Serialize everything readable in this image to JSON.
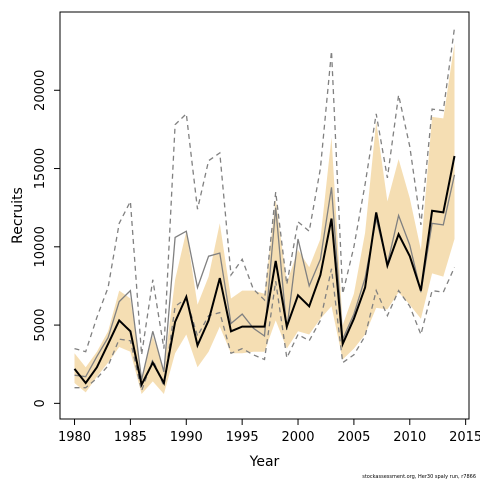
{
  "chart_data": {
    "type": "line",
    "title": "",
    "xlabel": "Year",
    "ylabel": "Recruits",
    "credit": "stockassessment.org, Her30 spaly run, r7866",
    "xlim": [
      1978.7,
      2015.3
    ],
    "ylim": [
      -1000,
      25000
    ],
    "x_ticks": [
      1980,
      1985,
      1990,
      1995,
      2000,
      2005,
      2010,
      2015
    ],
    "y_ticks": [
      0,
      5000,
      10000,
      15000,
      20000
    ],
    "grid": false,
    "legend": "none",
    "colors": {
      "band": "#f5deb3",
      "current": "#000000",
      "previous": "#808080",
      "previous_ci": "#808080"
    },
    "x": [
      1980,
      1981,
      1982,
      1983,
      1984,
      1985,
      1986,
      1987,
      1988,
      1989,
      1990,
      1991,
      1992,
      1993,
      1994,
      1995,
      1996,
      1997,
      1998,
      1999,
      2000,
      2001,
      2002,
      2003,
      2004,
      2005,
      2006,
      2007,
      2008,
      2009,
      2010,
      2011,
      2012,
      2013,
      2014
    ],
    "series": [
      {
        "role": "current_ci_band",
        "lower": [
          1300,
          700,
          1700,
          2600,
          3600,
          3300,
          600,
          1400,
          600,
          3200,
          4400,
          2300,
          3300,
          4900,
          3200,
          3200,
          3300,
          3300,
          5300,
          3500,
          4600,
          4400,
          5400,
          6200,
          2800,
          3500,
          4400,
          6100,
          6000,
          7100,
          6300,
          5400,
          8300,
          8100,
          10500
        ],
        "upper": [
          3200,
          2300,
          3300,
          4600,
          7200,
          6700,
          1700,
          4300,
          2200,
          7900,
          11000,
          6300,
          8100,
          11500,
          6700,
          7200,
          7200,
          7000,
          13000,
          7700,
          9800,
          8700,
          10500,
          17000,
          5000,
          7000,
          10900,
          18000,
          12900,
          15600,
          13100,
          9800,
          18300,
          18200,
          23000
        ]
      },
      {
        "role": "current",
        "values": [
          2200,
          1300,
          2300,
          3800,
          5300,
          4600,
          1200,
          2600,
          1300,
          5200,
          6800,
          3700,
          5300,
          8000,
          4600,
          4900,
          4900,
          4900,
          9100,
          4900,
          6900,
          6200,
          8200,
          11800,
          3800,
          5400,
          7400,
          12200,
          8800,
          10800,
          9400,
          7200,
          12300,
          12200,
          15800
        ]
      },
      {
        "role": "previous",
        "values": [
          1800,
          1700,
          3000,
          4200,
          6500,
          7200,
          1500,
          4600,
          2000,
          10600,
          11000,
          7400,
          9400,
          9600,
          5100,
          5700,
          4800,
          4300,
          12500,
          4700,
          10500,
          7500,
          9200,
          13800,
          4100,
          5700,
          8000,
          11800,
          8900,
          12000,
          10100,
          7100,
          11500,
          11400,
          14600
        ]
      },
      {
        "role": "previous_ci_lower",
        "values": [
          1000,
          1000,
          1600,
          2400,
          4100,
          4000,
          800,
          2800,
          1100,
          6200,
          6700,
          4300,
          5600,
          5800,
          3200,
          3500,
          3100,
          2800,
          7800,
          2900,
          4400,
          4000,
          5300,
          8600,
          2600,
          3100,
          4300,
          7200,
          5600,
          7200,
          6200,
          4400,
          7200,
          7100,
          8700
        ]
      },
      {
        "role": "previous_ci_upper",
        "values": [
          3500,
          3300,
          5500,
          7400,
          11500,
          12900,
          3100,
          7900,
          3500,
          17800,
          18500,
          12400,
          15500,
          16000,
          8200,
          9200,
          7300,
          6600,
          13500,
          7600,
          11600,
          11000,
          15000,
          22500,
          7000,
          10000,
          14000,
          18500,
          14400,
          19700,
          16400,
          11400,
          18800,
          18700,
          24000
        ]
      }
    ]
  }
}
